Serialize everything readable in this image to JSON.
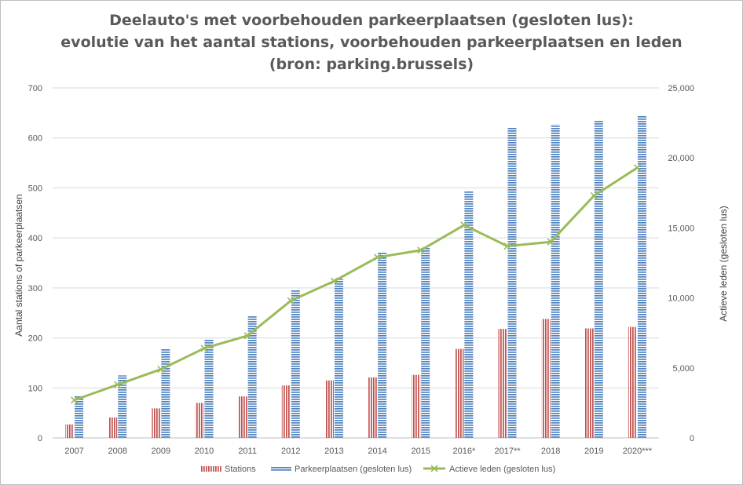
{
  "chart_data": {
    "type": "bar",
    "title_lines": [
      "Deelauto's met voorbehouden parkeerplaatsen (gesloten lus):",
      "evolutie van het aantal stations, voorbehouden parkeerplaatsen en leden",
      "(bron: parking.brussels)"
    ],
    "categories": [
      "2007",
      "2008",
      "2009",
      "2010",
      "2011",
      "2012",
      "2013",
      "2014",
      "2015",
      "2016*",
      "2017**",
      "2018",
      "2019",
      "2020***"
    ],
    "ylabel": "Aantal stations of parkeerplaatsen",
    "y2label": "Actieve leden (gesloten lus)",
    "ylim": [
      0,
      700
    ],
    "yticks": [
      0,
      100,
      200,
      300,
      400,
      500,
      600,
      700
    ],
    "y2lim": [
      0,
      25000
    ],
    "y2ticks": [
      0,
      5000,
      10000,
      15000,
      20000,
      25000
    ],
    "y2tick_labels": [
      "0",
      "5,000",
      "10,000",
      "15,000",
      "20,000",
      "25,000"
    ],
    "grid": true,
    "legend_position": "bottom",
    "series": [
      {
        "name": "Stations",
        "kind": "bar",
        "axis": "left",
        "color": "#c0504d",
        "pattern": "vertical-stripes",
        "values": [
          27,
          41,
          59,
          70,
          83,
          105,
          115,
          121,
          126,
          178,
          218,
          238,
          219,
          222
        ]
      },
      {
        "name": "Parkeerplaatsen (gesloten lus)",
        "kind": "bar",
        "axis": "left",
        "color": "#4f81bd",
        "pattern": "horizontal-stripes",
        "values": [
          85,
          125,
          178,
          198,
          245,
          295,
          318,
          372,
          380,
          494,
          621,
          627,
          634,
          645
        ]
      },
      {
        "name": "Actieve leden (gesloten lus)",
        "kind": "line",
        "axis": "right",
        "color": "#9bbb59",
        "marker": "x",
        "values": [
          2700,
          3800,
          4900,
          6400,
          7300,
          9800,
          11200,
          12900,
          13400,
          15200,
          13700,
          14000,
          17300,
          19300
        ]
      }
    ]
  }
}
